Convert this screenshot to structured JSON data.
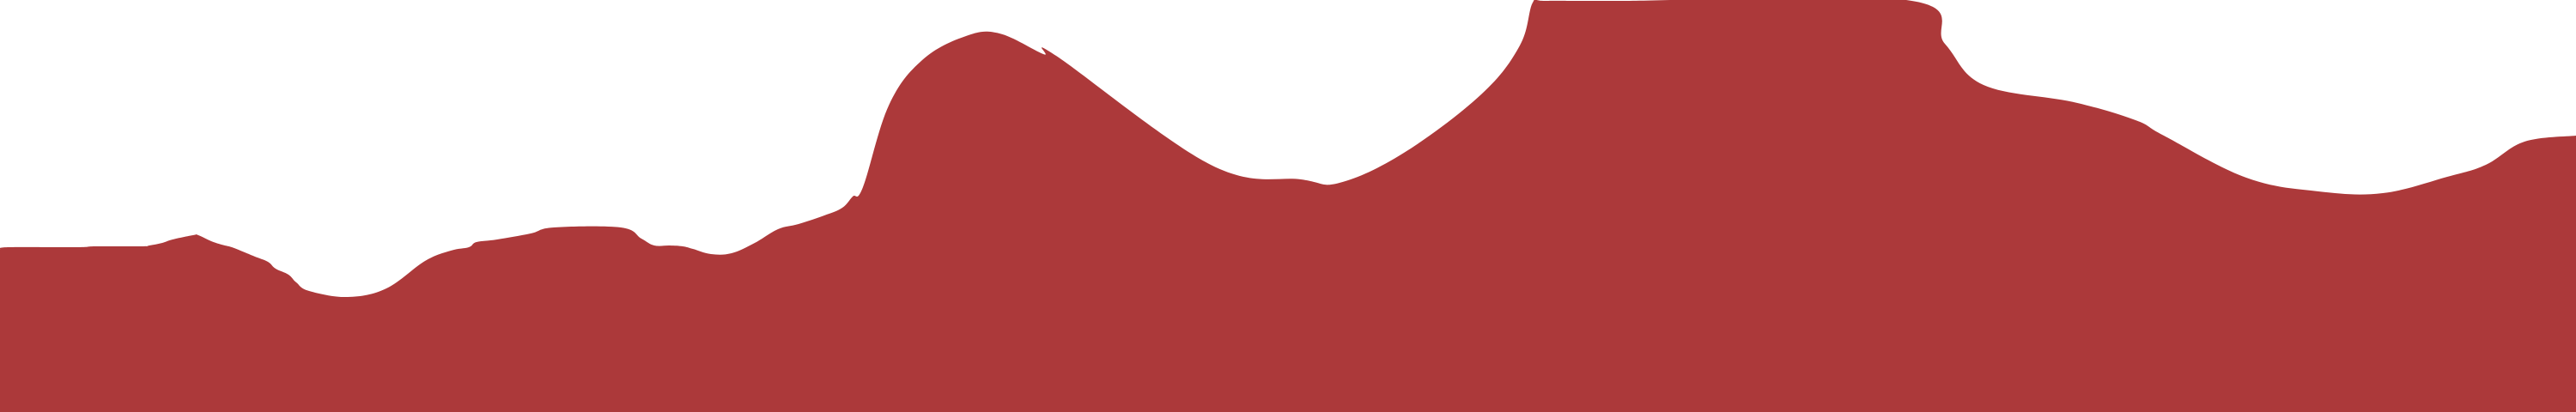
{
  "chart_data": {
    "type": "area",
    "title": "",
    "xlabel": "",
    "ylabel": "",
    "grid": false,
    "legend": "none",
    "xlim": [
      0,
      1000
    ],
    "ylim": [
      0,
      480
    ],
    "fill_color": "#ac393a",
    "background_color": "#ffffff",
    "series": [
      {
        "x": [
          0,
          3,
          30,
          37,
          55,
          58,
          63,
          67,
          75,
          77,
          82,
          86,
          90,
          95,
          99,
          104,
          107,
          112,
          115,
          120,
          135,
          150,
          165,
          175,
          182,
          185,
          193,
          206,
          215,
          241,
          249,
          254,
          260,
          265,
          269,
          276,
          284,
          293,
          302,
          310,
          320,
          327,
          331,
          335,
          345,
          358,
          375,
          388,
          405,
          410,
          470,
          505,
          520,
          545,
          575,
          590,
          595,
          600,
          630,
          740,
          755,
          770,
          805,
          829,
          840,
          872,
          900,
          925,
          950,
          965,
          980,
          1000
        ],
        "y": [
          189,
          192,
          192,
          193,
          193,
          194,
          197,
          201,
          206,
          206,
          199,
          195,
          192,
          186,
          181,
          175,
          167,
          160,
          151,
          141,
          134,
          144,
          176,
          188,
          192,
          198,
          201,
          208,
          215,
          215,
          202,
          194,
          194,
          193,
          190,
          184,
          185,
          197,
          213,
          219,
          229,
          238,
          251,
          262,
          357,
          410,
          438,
          441,
          417,
          415,
          288,
          271,
          267,
          302,
          370,
          427,
          477,
          479,
          479,
          480,
          429,
          381,
          361,
          340,
          322,
          273,
          257,
          255,
          274,
          288,
          315,
          322
        ]
      }
    ]
  }
}
